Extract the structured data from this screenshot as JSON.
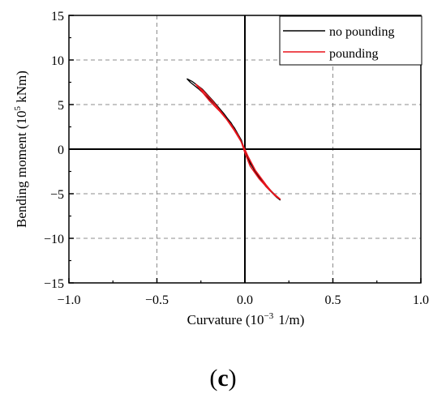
{
  "chart_data": {
    "type": "line",
    "panel_label_open": "(",
    "panel_label_letter": "c",
    "panel_label_close": ")",
    "xlabel_main": "Curvature (10",
    "xlabel_exp": "−3",
    "xlabel_unit": "1/m)",
    "ylabel_main": "Bending moment (10",
    "ylabel_exp": "5",
    "ylabel_unit": " kNm)",
    "xlim": [
      -1.0,
      1.0
    ],
    "ylim": [
      -15,
      15
    ],
    "x_ticks": [
      -1.0,
      -0.5,
      0.0,
      0.5,
      1.0
    ],
    "x_tick_labels": [
      "−1.0",
      "−0.5",
      "0.0",
      "0.5",
      "1.0"
    ],
    "y_ticks": [
      -15,
      -10,
      -5,
      0,
      5,
      10,
      15
    ],
    "y_tick_labels": [
      "−15",
      "−10",
      "−5",
      "0",
      "5",
      "10",
      "15"
    ],
    "grid": true,
    "legend_position": "top-right",
    "series": [
      {
        "name": "no pounding",
        "color": "#000000",
        "x": [
          -0.33,
          -0.3,
          -0.24,
          -0.18,
          -0.12,
          -0.06,
          -0.02,
          0.0,
          0.03,
          0.08,
          0.14,
          0.2,
          0.18,
          0.12,
          0.06,
          0.02,
          -0.01,
          -0.04,
          -0.08,
          -0.14,
          -0.2,
          -0.26,
          -0.31,
          -0.33
        ],
        "y": [
          7.9,
          7.6,
          6.7,
          5.4,
          4.0,
          2.4,
          1.0,
          -0.2,
          -1.6,
          -3.1,
          -4.5,
          -5.7,
          -5.4,
          -4.2,
          -2.6,
          -1.1,
          0.3,
          1.7,
          3.0,
          4.4,
          5.6,
          6.7,
          7.5,
          7.9
        ]
      },
      {
        "name": "pounding",
        "color": "#e8141c",
        "x": [
          -0.28,
          -0.24,
          -0.18,
          -0.12,
          -0.06,
          -0.02,
          0.0,
          0.03,
          0.08,
          0.14,
          0.2,
          0.17,
          0.12,
          0.06,
          0.02,
          -0.01,
          -0.04,
          -0.08,
          -0.14,
          -0.2,
          -0.25,
          -0.28
        ],
        "y": [
          7.3,
          6.6,
          5.3,
          3.8,
          2.1,
          0.8,
          -0.4,
          -1.9,
          -3.3,
          -4.6,
          -5.6,
          -5.2,
          -4.0,
          -2.4,
          -0.9,
          0.4,
          1.6,
          2.8,
          4.2,
          5.4,
          6.6,
          7.3
        ]
      }
    ]
  }
}
